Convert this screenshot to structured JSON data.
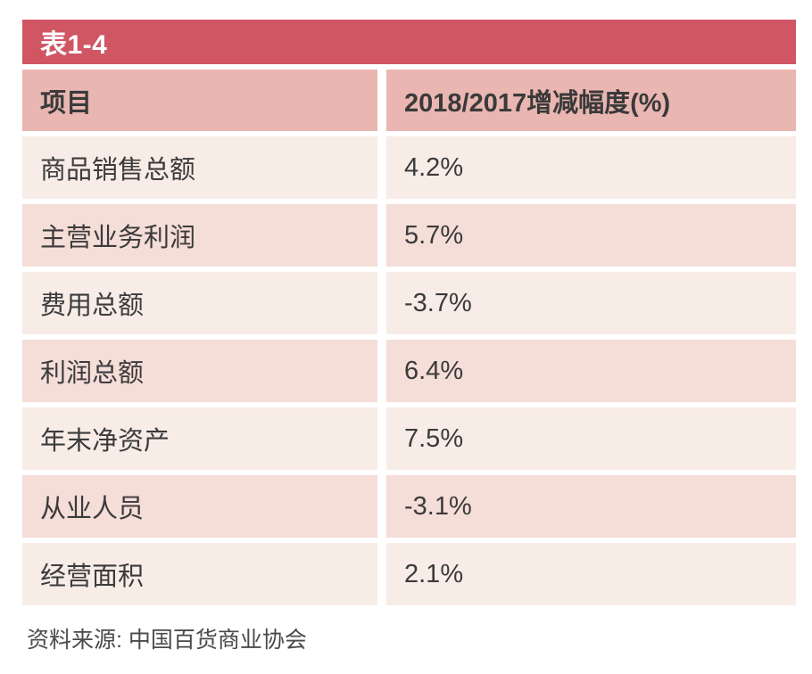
{
  "table": {
    "title": "表1-4",
    "columns": {
      "item": "项目",
      "change": "2018/2017增减幅度(%)"
    },
    "rows": [
      {
        "item": "商品销售总额",
        "value": "4.2%"
      },
      {
        "item": "主营业务利润",
        "value": "5.7%"
      },
      {
        "item": "费用总额",
        "value": "-3.7%"
      },
      {
        "item": "利润总额",
        "value": "6.4%"
      },
      {
        "item": "年末净资产",
        "value": "7.5%"
      },
      {
        "item": "从业人员",
        "value": "-3.1%"
      },
      {
        "item": "经营面积",
        "value": "2.1%"
      }
    ]
  },
  "footer": {
    "source": "资料来源: 中国百货商业协会"
  },
  "colors": {
    "title_bar": "#d05663",
    "header_bg": "#eab6b1",
    "row_light": "#f8ece7",
    "row_dark": "#f5ddd8",
    "text": "#3b3b3b",
    "title_text": "#ffffff"
  },
  "chart_data": {
    "type": "table",
    "title": "表1-4",
    "columns": [
      "项目",
      "2018/2017增减幅度(%)"
    ],
    "rows": [
      [
        "商品销售总额",
        "4.2%"
      ],
      [
        "主营业务利润",
        "5.7%"
      ],
      [
        "费用总额",
        "-3.7%"
      ],
      [
        "利润总额",
        "6.4%"
      ],
      [
        "年末净资产",
        "7.5%"
      ],
      [
        "从业人员",
        "-3.1%"
      ],
      [
        "经营面积",
        "2.1%"
      ]
    ],
    "values_pct": [
      4.2,
      5.7,
      -3.7,
      6.4,
      7.5,
      -3.1,
      2.1
    ],
    "source": "资料来源: 中国百货商业协会"
  }
}
